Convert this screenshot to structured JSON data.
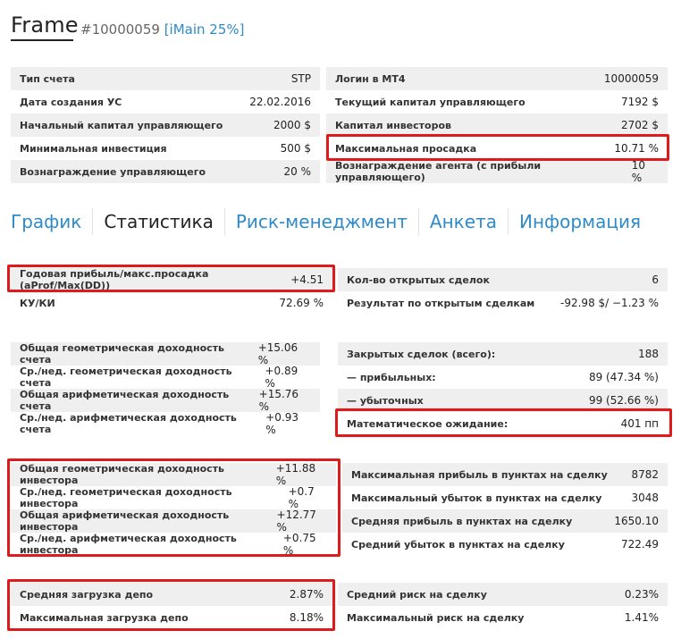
{
  "header": {
    "title": "Frame",
    "id": "#10000059",
    "mode": "[iMain 25%]"
  },
  "info_left": [
    {
      "label": "Тип счета",
      "value": "STP"
    },
    {
      "label": "Дата создания УС",
      "value": "22.02.2016"
    },
    {
      "label": "Начальный капитал управляющего",
      "value": "2000 $"
    },
    {
      "label": "Минимальная инвестиция",
      "value": "500 $"
    },
    {
      "label": "Вознаграждение управляющего",
      "value": "20 %"
    }
  ],
  "info_right": [
    {
      "label": "Логин в МТ4",
      "value": "10000059"
    },
    {
      "label": "Текущий капитал управляющего",
      "value": "7192 $"
    },
    {
      "label": "Капитал инвесторов",
      "value": "2702 $"
    },
    {
      "label": "Максимальная просадка",
      "value": "10.71 %"
    },
    {
      "label": "Вознаграждение агента (с прибыли управляющего)",
      "value": "10 %"
    }
  ],
  "tabs": [
    "График",
    "Статистика",
    "Риск-менеджмент",
    "Анкета",
    "Информация"
  ],
  "stats1_left": [
    {
      "label": "Годовая прибыль/макс.просадка (aProf/Max(DD))",
      "value": "+4.51"
    },
    {
      "label": "КУ/КИ",
      "value": "72.69 %"
    }
  ],
  "stats1_right": [
    {
      "label": "Кол-во открытых сделок",
      "value": "6"
    },
    {
      "label": "Результат по открытым сделкам",
      "value": "-92.98 $/ −1.23 %"
    }
  ],
  "stats2_left": [
    {
      "label": "Общая геометрическая доходность счета",
      "value": "+15.06 %"
    },
    {
      "label": "Ср./нед. геометрическая доходность счета",
      "value": "+0.89 %"
    },
    {
      "label": "Общая арифметическая доходность счета",
      "value": "+15.76 %"
    },
    {
      "label": "Ср./нед. арифметическая доходность счета",
      "value": "+0.93 %"
    }
  ],
  "stats2_right": [
    {
      "label": "Закрытых сделок (всего):",
      "value": "188"
    },
    {
      "label": "— прибыльных:",
      "value": "89 (47.34 %)"
    },
    {
      "label": "— убыточных",
      "value": "99 (52.66 %)"
    },
    {
      "label": "Математическое ожидание:",
      "value": "401 пп"
    }
  ],
  "stats3_left": [
    {
      "label": "Общая геометрическая доходность инвестора",
      "value": "+11.88 %"
    },
    {
      "label": "Ср./нед. геометрическая доходность инвестора",
      "value": "+0.7 %"
    },
    {
      "label": "Общая арифметическая доходность инвестора",
      "value": "+12.77 %"
    },
    {
      "label": "Ср./нед. арифметическая доходность инвестора",
      "value": "+0.75 %"
    }
  ],
  "stats3_right": [
    {
      "label": "Максимальная прибыль в пунктах на сделку",
      "value": "8782"
    },
    {
      "label": "Максимальный убыток в пунктах на сделку",
      "value": "3048"
    },
    {
      "label": "Средняя прибыль в пунктах на сделку",
      "value": "1650.10"
    },
    {
      "label": "Средний убыток в пунктах на сделку",
      "value": "722.49"
    }
  ],
  "stats4_left": [
    {
      "label": "Средняя загрузка депо",
      "value": "2.87%"
    },
    {
      "label": "Максимальная загрузка депо",
      "value": "8.18%"
    }
  ],
  "stats4_right": [
    {
      "label": "Средний риск на сделку",
      "value": "0.23%"
    },
    {
      "label": "Максимальный риск на сделку",
      "value": "1.41%"
    }
  ]
}
